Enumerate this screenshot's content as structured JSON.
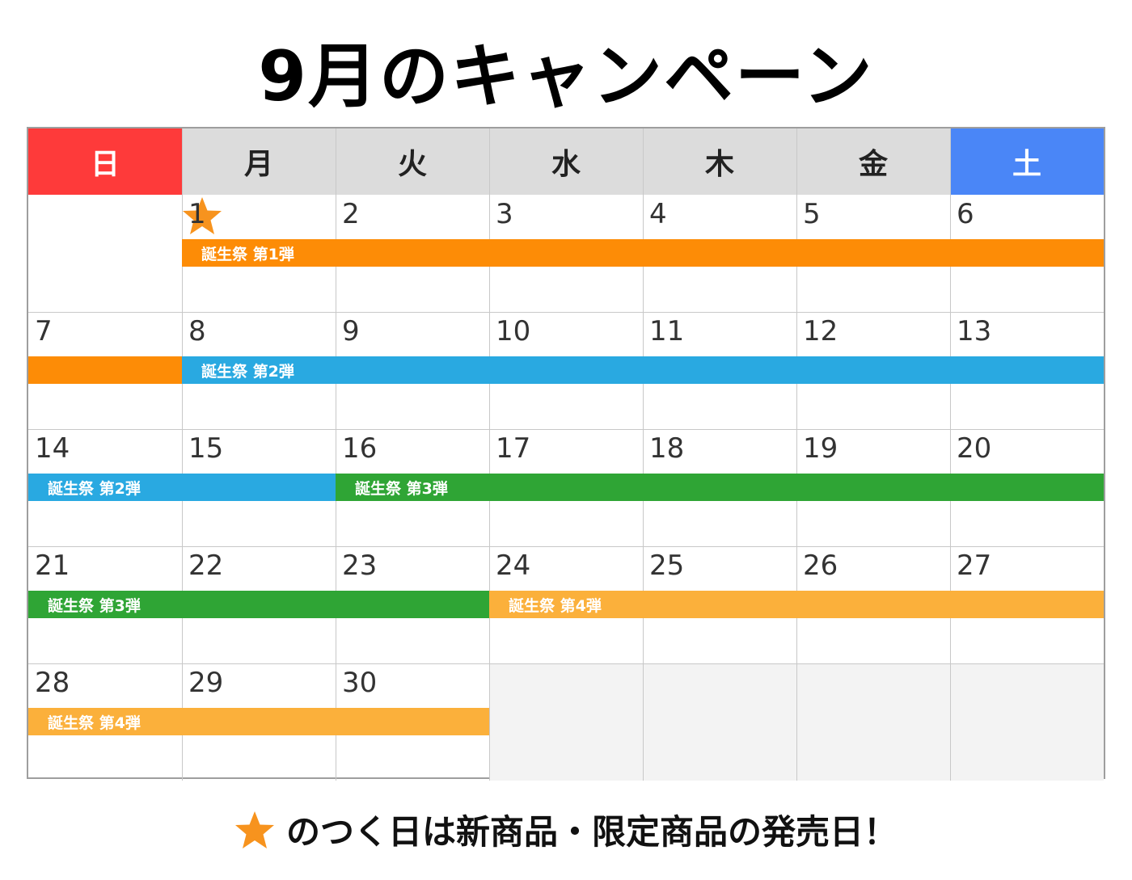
{
  "title": "9月のキャンペーン",
  "weekdays": [
    "日",
    "月",
    "火",
    "水",
    "木",
    "金",
    "土"
  ],
  "colors": {
    "sunday": "#fe3a3a",
    "saturday": "#4a86f7",
    "weekday_header": "#dcdcdc",
    "campaign_1": "#fd8c06",
    "campaign_2": "#29a9e1",
    "campaign_3": "#2fa535",
    "campaign_4": "#fbb03b",
    "star": "#f7931e"
  },
  "weeks": [
    [
      "",
      "1",
      "2",
      "3",
      "4",
      "5",
      "6"
    ],
    [
      "7",
      "8",
      "9",
      "10",
      "11",
      "12",
      "13"
    ],
    [
      "14",
      "15",
      "16",
      "17",
      "18",
      "19",
      "20"
    ],
    [
      "21",
      "22",
      "23",
      "24",
      "25",
      "26",
      "27"
    ],
    [
      "28",
      "29",
      "30",
      "",
      "",
      "",
      ""
    ]
  ],
  "campaigns": [
    {
      "week": 0,
      "start": 1,
      "end": 6,
      "label": "誕生祭 第1弾",
      "color": "campaign_1"
    },
    {
      "week": 1,
      "start": 0,
      "end": 0,
      "label": "",
      "color": "campaign_1"
    },
    {
      "week": 1,
      "start": 1,
      "end": 6,
      "label": "誕生祭 第2弾",
      "color": "campaign_2"
    },
    {
      "week": 2,
      "start": 0,
      "end": 1,
      "label": "誕生祭 第2弾",
      "color": "campaign_2"
    },
    {
      "week": 2,
      "start": 2,
      "end": 6,
      "label": "誕生祭 第3弾",
      "color": "campaign_3"
    },
    {
      "week": 3,
      "start": 0,
      "end": 2,
      "label": "誕生祭 第3弾",
      "color": "campaign_3"
    },
    {
      "week": 3,
      "start": 3,
      "end": 6,
      "label": "誕生祭 第4弾",
      "color": "campaign_4"
    },
    {
      "week": 4,
      "start": 0,
      "end": 2,
      "label": "誕生祭 第4弾",
      "color": "campaign_4"
    }
  ],
  "star_day": "1",
  "footer": {
    "icon": "star-icon",
    "text": "のつく日は新商品・限定商品の発売日！"
  }
}
